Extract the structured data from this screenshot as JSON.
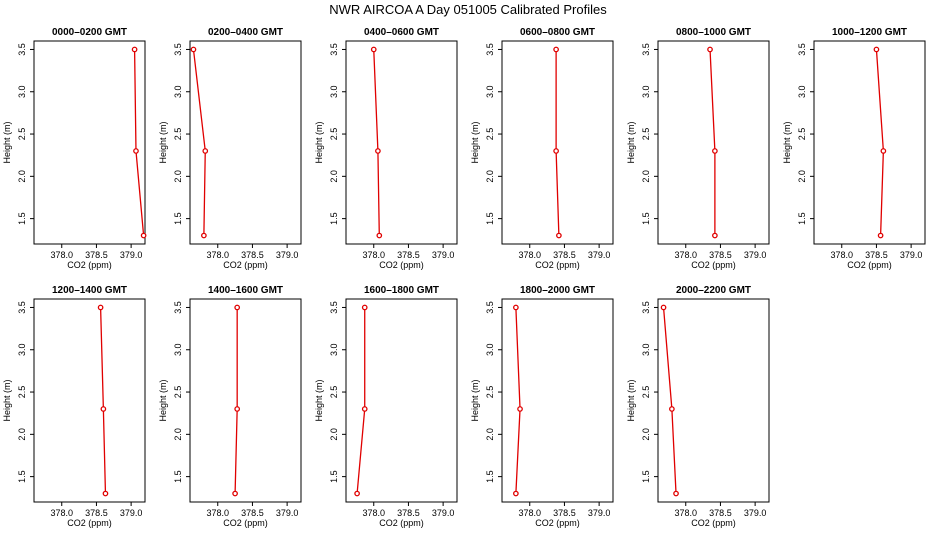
{
  "title": "NWR AIRCOA A  Day 051005  Calibrated Profiles",
  "chart_data": {
    "type": "line",
    "title": "NWR AIRCOA A  Day 051005  Calibrated Profiles",
    "xlabel": "CO2 (ppm)",
    "ylabel": "Height (m)",
    "xlim": [
      377.6,
      379.2
    ],
    "ylim": [
      1.2,
      3.6
    ],
    "xticks": [
      "378.0",
      "378.5",
      "379.0"
    ],
    "yticks": [
      "1.5",
      "2.0",
      "2.5",
      "3.0",
      "3.5"
    ],
    "heights": [
      3.5,
      2.3,
      1.3
    ],
    "color": "#e00000",
    "panels": [
      {
        "name": "0000–0200 GMT",
        "co2": [
          379.05,
          379.07,
          379.18
        ]
      },
      {
        "name": "0200–0400 GMT",
        "co2": [
          377.65,
          377.82,
          377.8
        ]
      },
      {
        "name": "0400–0600 GMT",
        "co2": [
          378.0,
          378.06,
          378.08
        ]
      },
      {
        "name": "0600–0800 GMT",
        "co2": [
          378.38,
          378.38,
          378.42
        ]
      },
      {
        "name": "0800–1000 GMT",
        "co2": [
          378.35,
          378.42,
          378.42
        ]
      },
      {
        "name": "1000–1200 GMT",
        "co2": [
          378.5,
          378.6,
          378.56
        ]
      },
      {
        "name": "1200–1400 GMT",
        "co2": [
          378.56,
          378.6,
          378.63
        ]
      },
      {
        "name": "1400–1600 GMT",
        "co2": [
          378.28,
          378.28,
          378.25
        ]
      },
      {
        "name": "1600–1800 GMT",
        "co2": [
          377.87,
          377.87,
          377.76
        ]
      },
      {
        "name": "1800–2000 GMT",
        "co2": [
          377.8,
          377.86,
          377.8
        ]
      },
      {
        "name": "2000–2200 GMT",
        "co2": [
          377.68,
          377.8,
          377.86
        ]
      }
    ]
  }
}
